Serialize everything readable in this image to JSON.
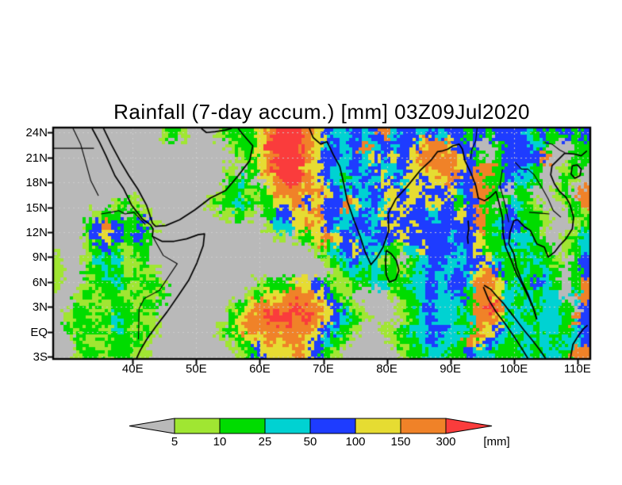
{
  "chart_data": {
    "type": "heatmap",
    "title": "Rainfall (7-day accum.) [mm] 03Z09Jul2020",
    "lon_range": [
      27.6,
      111.9
    ],
    "lat_range": [
      -3.17,
      24.5
    ],
    "x_axis": {
      "ticks": [
        {
          "label": "40E",
          "lon": 40
        },
        {
          "label": "50E",
          "lon": 50
        },
        {
          "label": "60E",
          "lon": 60
        },
        {
          "label": "70E",
          "lon": 70
        },
        {
          "label": "80E",
          "lon": 80
        },
        {
          "label": "90E",
          "lon": 90
        },
        {
          "label": "100E",
          "lon": 100
        },
        {
          "label": "110E",
          "lon": 110
        }
      ]
    },
    "y_axis": {
      "ticks": [
        {
          "label": "24N",
          "lat": 24
        },
        {
          "label": "21N",
          "lat": 21
        },
        {
          "label": "18N",
          "lat": 18
        },
        {
          "label": "15N",
          "lat": 15
        },
        {
          "label": "12N",
          "lat": 12
        },
        {
          "label": "9N",
          "lat": 9
        },
        {
          "label": "6N",
          "lat": 6
        },
        {
          "label": "3N",
          "lat": 3
        },
        {
          "label": "EQ",
          "lat": 0
        },
        {
          "label": "3S",
          "lat": -3
        }
      ]
    },
    "colorbar": {
      "levels": [
        5,
        10,
        25,
        50,
        100,
        150,
        300
      ],
      "segment_colors": [
        "#a0e632",
        "#00dc00",
        "#00d2d2",
        "#1e3cff",
        "#e6dc32",
        "#f08228"
      ],
      "under_color": "#b9b9b9",
      "over_color": "#fa3c3c",
      "unit_label": "[mm]"
    },
    "grid": {
      "legend": "rainfall level per cell: 0=<5mm(gray) 1=5-10 2=10-25 3=25-50 4=50-100 5=100-150 6=150-300 7=>300mm",
      "cols": 56,
      "rows": 20,
      "rows_data": [
        "00000000000121000122256777654334346344343442424443242424",
        "00000000000000000012257777653434634344566544002444320022",
        "00000000000000000001256777654434354545666654202444460022",
        "00000000000000000010256777554334343345566654662443200120",
        "00000000000000000023205677654323435435455644622433200210",
        "00000000000000000122125666565434344545544534662022001206",
        "00000012100000001223212556454465343545455424620232100126",
        "00001220210000000112102445564433435454434454622432210021",
        "00024642241000000000001335654334434545444444623442210012",
        "00014542420000000000000101256544344454444344522433200123",
        "00012421220000000000000000012345433213544434522323220123",
        "10013231120000000000000000001234331202344334453222321024",
        "10022321211000000000000000000123232212343343564223232024",
        "10012232122100000000012225542112233223343443665232432026",
        "00121221211200000000125566654210000122343342665323233036",
        "00212122122000000012566667665421000012343332676323233204",
        "01221232211000000025667776765432100012343323665232333264",
        "02122132121000000125666666654321001123344332654333233234",
        "00211222210000000012556566543210000122343326543223232334",
        "00122122110000000001245556542100000012233224332223233266"
      ]
    },
    "coastlines": [
      [
        [
          33.6,
          24.5
        ],
        [
          34.8,
          22.8
        ],
        [
          35.8,
          21.2
        ],
        [
          37.2,
          18.8
        ],
        [
          38.6,
          17.2
        ],
        [
          39.8,
          15.3
        ],
        [
          41.5,
          13.6
        ],
        [
          42.8,
          12.9
        ],
        [
          43.2,
          12.4
        ],
        [
          43.1,
          11.5
        ],
        [
          44.6,
          10.9
        ],
        [
          46.5,
          10.9
        ],
        [
          48.5,
          11.2
        ],
        [
          50.3,
          11.7
        ],
        [
          51.3,
          11.8
        ],
        [
          51.1,
          10.4
        ],
        [
          50.1,
          8.3
        ],
        [
          48.8,
          6.2
        ],
        [
          47.2,
          4.4
        ],
        [
          45.4,
          2.4
        ],
        [
          43.6,
          0.6
        ],
        [
          42.2,
          -0.9
        ],
        [
          41.2,
          -2.2
        ],
        [
          40.6,
          -3.2
        ]
      ],
      [
        [
          35.4,
          24.5
        ],
        [
          36.6,
          22.6
        ],
        [
          38.0,
          20.6
        ],
        [
          39.4,
          18.8
        ],
        [
          40.8,
          17.2
        ],
        [
          42.2,
          15.2
        ],
        [
          43.1,
          13.1
        ],
        [
          43.6,
          12.7
        ],
        [
          45.2,
          12.8
        ],
        [
          47.4,
          13.5
        ],
        [
          49.8,
          14.7
        ],
        [
          52.2,
          16.1
        ],
        [
          54.6,
          17.0
        ],
        [
          56.6,
          18.8
        ],
        [
          58.4,
          20.6
        ],
        [
          58.9,
          22.4
        ],
        [
          57.2,
          23.9
        ],
        [
          56.6,
          24.5
        ]
      ],
      [
        [
          50.8,
          24.5
        ],
        [
          51.6,
          24.0
        ],
        [
          53.0,
          24.1
        ],
        [
          54.6,
          24.3
        ],
        [
          55.6,
          24.5
        ]
      ],
      [
        [
          67.8,
          24.5
        ],
        [
          68.4,
          23.4
        ],
        [
          69.6,
          22.6
        ],
        [
          70.6,
          22.9
        ],
        [
          71.6,
          21.3
        ],
        [
          72.6,
          19.9
        ],
        [
          73.2,
          17.9
        ],
        [
          73.8,
          15.7
        ],
        [
          74.8,
          13.5
        ],
        [
          75.8,
          11.5
        ],
        [
          76.6,
          9.6
        ],
        [
          77.5,
          8.1
        ],
        [
          78.4,
          8.9
        ],
        [
          79.4,
          10.2
        ],
        [
          80.3,
          12.2
        ],
        [
          80.2,
          14.2
        ],
        [
          81.4,
          16.0
        ],
        [
          83.2,
          17.5
        ],
        [
          85.2,
          19.4
        ],
        [
          87.0,
          20.7
        ],
        [
          88.0,
          21.7
        ],
        [
          88.8,
          21.8
        ],
        [
          89.6,
          22.0
        ],
        [
          90.4,
          22.4
        ],
        [
          91.4,
          22.6
        ],
        [
          91.9,
          22.0
        ],
        [
          92.3,
          20.6
        ],
        [
          93.2,
          19.2
        ],
        [
          94.0,
          17.6
        ],
        [
          94.4,
          16.1
        ],
        [
          95.4,
          15.8
        ],
        [
          96.4,
          16.3
        ],
        [
          97.2,
          16.9
        ],
        [
          97.6,
          15.7
        ],
        [
          98.2,
          13.8
        ],
        [
          98.3,
          11.8
        ],
        [
          98.7,
          10.2
        ],
        [
          99.6,
          8.6
        ],
        [
          100.4,
          7.0
        ],
        [
          101.4,
          5.6
        ],
        [
          102.4,
          4.0
        ],
        [
          103.2,
          2.6
        ],
        [
          103.6,
          1.5
        ]
      ],
      [
        [
          103.6,
          1.5
        ],
        [
          103.0,
          3.0
        ],
        [
          102.2,
          4.6
        ],
        [
          101.2,
          6.2
        ],
        [
          100.4,
          7.8
        ],
        [
          100.0,
          9.4
        ],
        [
          99.2,
          10.6
        ],
        [
          99.4,
          12.0
        ],
        [
          100.0,
          13.4
        ],
        [
          100.6,
          13.5
        ],
        [
          101.6,
          12.7
        ],
        [
          102.6,
          12.2
        ],
        [
          103.6,
          10.6
        ],
        [
          104.8,
          10.2
        ],
        [
          105.4,
          9.0
        ],
        [
          106.4,
          9.6
        ],
        [
          107.2,
          10.4
        ],
        [
          108.2,
          11.2
        ],
        [
          109.2,
          12.4
        ],
        [
          109.4,
          13.8
        ],
        [
          108.8,
          15.4
        ],
        [
          108.2,
          16.2
        ],
        [
          107.2,
          16.9
        ],
        [
          106.4,
          17.8
        ],
        [
          105.8,
          18.9
        ],
        [
          106.0,
          20.0
        ],
        [
          106.8,
          20.6
        ],
        [
          108.0,
          21.5
        ],
        [
          109.6,
          21.4
        ],
        [
          110.6,
          21.2
        ],
        [
          111.5,
          21.8
        ]
      ],
      [
        [
          109.2,
          20.0
        ],
        [
          110.0,
          20.1
        ],
        [
          110.6,
          19.6
        ],
        [
          110.4,
          18.8
        ],
        [
          109.6,
          18.5
        ],
        [
          109.0,
          19.0
        ],
        [
          109.2,
          20.0
        ]
      ],
      [
        [
          79.9,
          9.8
        ],
        [
          80.7,
          9.4
        ],
        [
          81.5,
          8.6
        ],
        [
          81.9,
          7.4
        ],
        [
          81.4,
          6.3
        ],
        [
          80.4,
          6.0
        ],
        [
          79.9,
          6.9
        ],
        [
          79.8,
          8.4
        ],
        [
          79.9,
          9.8
        ]
      ],
      [
        [
          95.3,
          5.6
        ],
        [
          96.4,
          5.1
        ],
        [
          97.4,
          4.2
        ],
        [
          98.4,
          3.4
        ],
        [
          99.4,
          2.4
        ],
        [
          100.4,
          1.4
        ],
        [
          101.6,
          0.2
        ],
        [
          102.8,
          -0.9
        ],
        [
          104.0,
          -2.1
        ],
        [
          105.0,
          -3.2
        ]
      ],
      [
        [
          95.2,
          5.4
        ],
        [
          96.0,
          3.9
        ],
        [
          97.2,
          2.4
        ],
        [
          98.6,
          1.0
        ],
        [
          99.8,
          -0.3
        ],
        [
          101.0,
          -1.7
        ],
        [
          102.2,
          -3.2
        ]
      ],
      [
        [
          108.9,
          -3.2
        ],
        [
          109.3,
          -1.5
        ],
        [
          110.2,
          -0.4
        ],
        [
          111.0,
          0.4
        ],
        [
          111.6,
          0.8
        ]
      ],
      [
        [
          92.8,
          13.4
        ],
        [
          92.9,
          12.4
        ],
        [
          92.7,
          11.4
        ],
        [
          92.8,
          10.6
        ]
      ]
    ],
    "borders": [
      [
        [
          27.6,
          22.1
        ],
        [
          33.9,
          22.1
        ]
      ],
      [
        [
          30.6,
          24.5
        ],
        [
          31.8,
          22.6
        ],
        [
          32.6,
          20.4
        ],
        [
          33.4,
          18.2
        ],
        [
          34.6,
          16.4
        ]
      ],
      [
        [
          35.0,
          14.2
        ],
        [
          36.6,
          14.4
        ],
        [
          37.8,
          14.6
        ],
        [
          38.8,
          14.2
        ],
        [
          40.2,
          14.4
        ],
        [
          42.0,
          12.9
        ]
      ],
      [
        [
          43.2,
          11.4
        ],
        [
          44.8,
          9.2
        ],
        [
          47.0,
          8.2
        ],
        [
          44.2,
          5.0
        ],
        [
          41.8,
          4.0
        ],
        [
          41.0,
          2.8
        ],
        [
          40.9,
          -0.9
        ]
      ],
      [
        [
          98.2,
          19.6
        ],
        [
          97.8,
          17.6
        ],
        [
          98.6,
          15.4
        ],
        [
          99.2,
          13.2
        ]
      ],
      [
        [
          100.2,
          20.4
        ],
        [
          101.2,
          19.6
        ],
        [
          102.2,
          19.6
        ],
        [
          103.2,
          18.9
        ],
        [
          104.4,
          17.4
        ],
        [
          105.4,
          16.0
        ],
        [
          106.2,
          14.6
        ],
        [
          107.4,
          13.8
        ]
      ],
      [
        [
          104.8,
          22.8
        ],
        [
          106.0,
          22.6
        ],
        [
          107.2,
          21.9
        ],
        [
          108.0,
          21.6
        ]
      ],
      [
        [
          102.4,
          14.4
        ],
        [
          104.0,
          14.3
        ],
        [
          105.6,
          14.2
        ]
      ],
      [
        [
          94.2,
          24.5
        ],
        [
          94.0,
          23.0
        ],
        [
          93.4,
          22.0
        ],
        [
          93.2,
          20.8
        ]
      ]
    ]
  }
}
